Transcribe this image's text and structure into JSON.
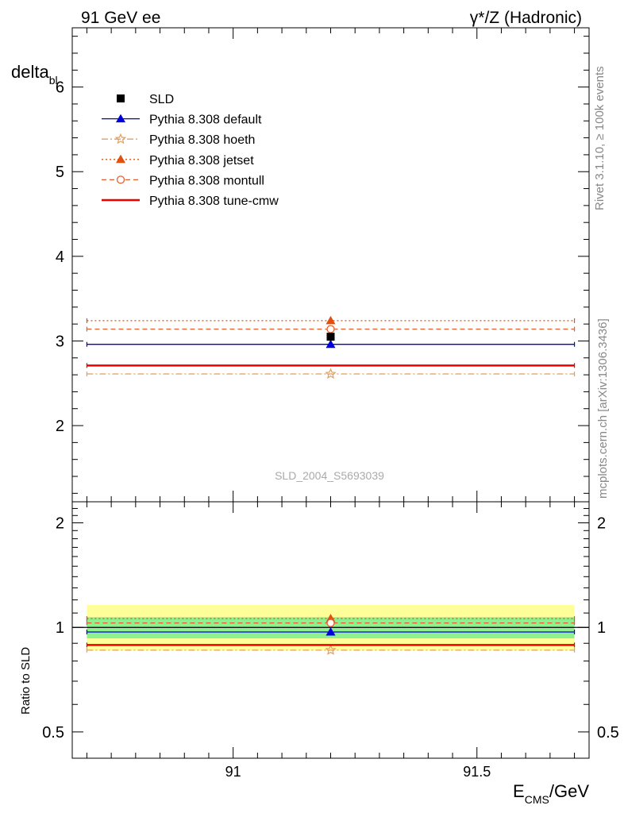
{
  "header": {
    "left_title": "91 GeV ee",
    "right_title": "γ*/Z (Hadronic)"
  },
  "side_labels": {
    "rivet": "Rivet 3.1.10, ≥ 100k events",
    "mcplots": "mcplots.cern.ch [arXiv:1306.3436]"
  },
  "watermark": "SLD_2004_S5693039",
  "chart_data": [
    {
      "type": "line",
      "panel": "main",
      "ylabel": "delta",
      "ylabel_sub": "bl",
      "xlim": [
        90.67,
        91.73
      ],
      "ylim": [
        1.1,
        6.7
      ],
      "y_ticks": [
        2,
        3,
        4,
        5,
        6
      ],
      "bin": [
        90.7,
        91.7
      ],
      "x_point": 91.2,
      "data": {
        "name": "SLD",
        "value": 3.05
      },
      "series": [
        {
          "name": "Pythia 8.308 default",
          "value": 2.96,
          "color": "#0000dd",
          "style": "solid",
          "marker": "triangle"
        },
        {
          "name": "Pythia 8.308 hoeth",
          "value": 2.61,
          "color": "#e0a060",
          "style": "dashdot",
          "marker": "star"
        },
        {
          "name": "Pythia 8.308 jetset",
          "value": 3.24,
          "color": "#e05010",
          "style": "dotted",
          "marker": "triangle"
        },
        {
          "name": "Pythia 8.308 montull",
          "value": 3.14,
          "color": "#e06030",
          "style": "dashed",
          "marker": "circle"
        },
        {
          "name": "Pythia 8.308 tune-cmw",
          "value": 2.71,
          "color": "#ee0000",
          "style": "solid-thick",
          "marker": "none"
        }
      ],
      "legend_position": "top-left"
    },
    {
      "type": "line",
      "panel": "ratio",
      "ylabel": "Ratio to SLD",
      "xlabel": "E",
      "xlabel_sub": "CMS",
      "xlabel_suffix": "/GeV",
      "xlim": [
        90.67,
        91.73
      ],
      "ylim": [
        0.42,
        2.3
      ],
      "y_ticks": [
        0.5,
        1,
        2
      ],
      "x_ticks": [
        91,
        91.5
      ],
      "band_stat": [
        0.93,
        1.07
      ],
      "band_total": [
        0.86,
        1.16
      ],
      "band_colors": {
        "stat": "#8ef08e",
        "total": "#ffff9a"
      },
      "series": [
        {
          "name": "Pythia 8.308 default",
          "value": 0.97
        },
        {
          "name": "Pythia 8.308 hoeth",
          "value": 0.86
        },
        {
          "name": "Pythia 8.308 jetset",
          "value": 1.06
        },
        {
          "name": "Pythia 8.308 montull",
          "value": 1.03
        },
        {
          "name": "Pythia 8.308 tune-cmw",
          "value": 0.89
        }
      ]
    }
  ]
}
